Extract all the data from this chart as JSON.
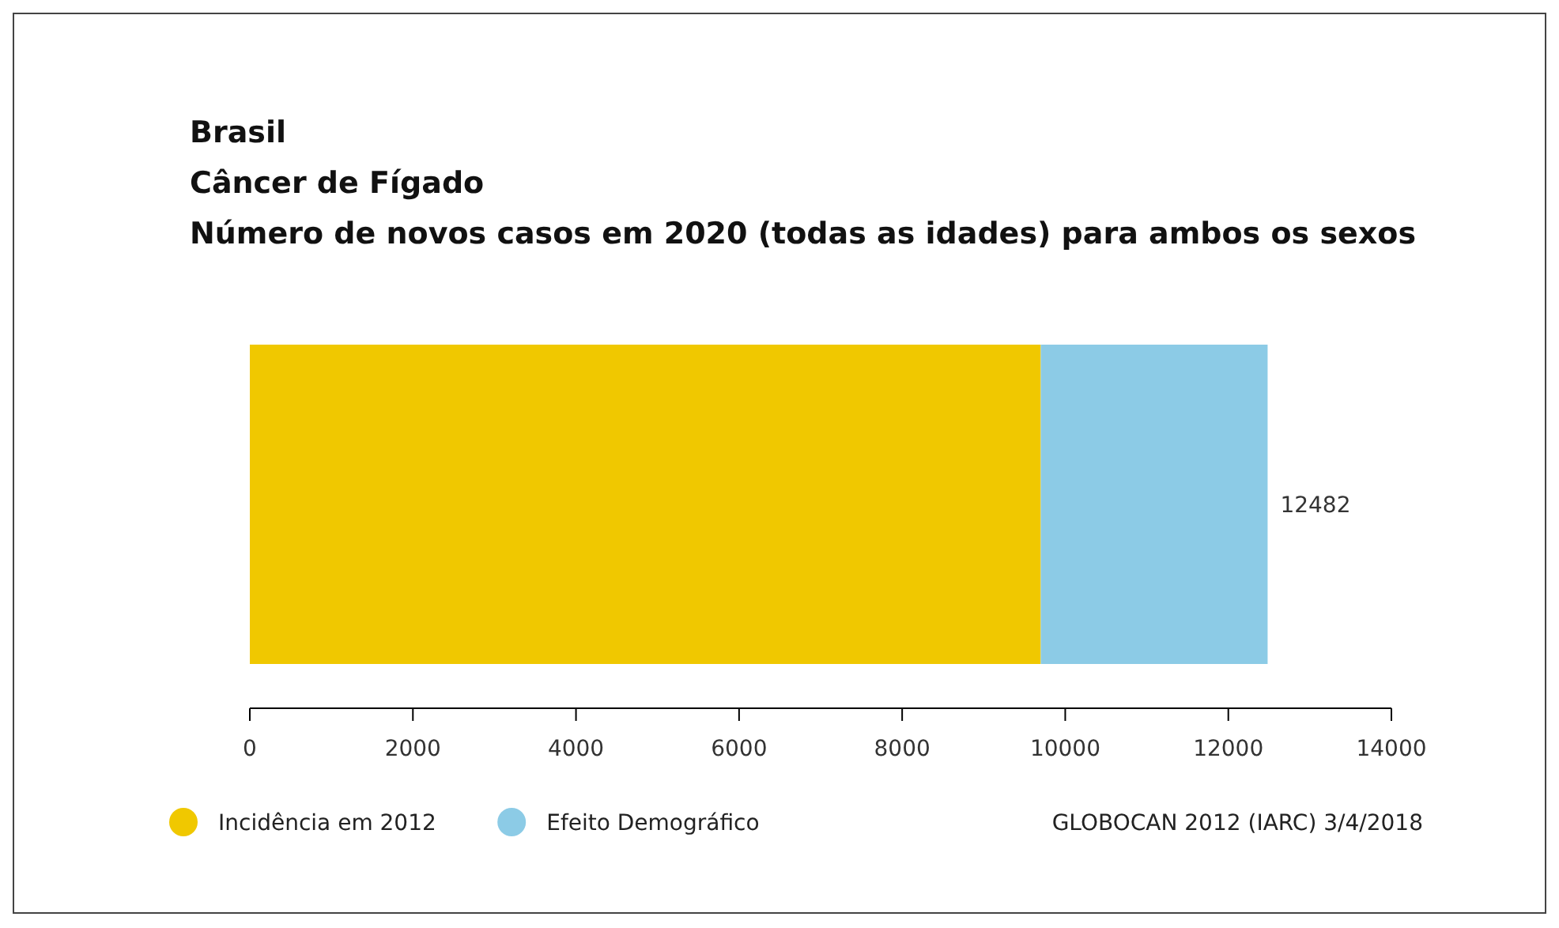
{
  "chart_data": {
    "type": "bar",
    "orientation": "horizontal",
    "stacked": true,
    "title": "Brasil\nCâncer de Fígado\nNúmero de novos casos em 2020 (todas as idades) para ambos os sexos",
    "categories": [
      null
    ],
    "series": [
      {
        "name": "Incidência em 2012",
        "color": "#f0c800",
        "values": [
          9700
        ]
      },
      {
        "name": "Efeito Demográfico",
        "color": "#8ccbe6",
        "values": [
          2782
        ]
      }
    ],
    "totals": [
      "12482"
    ],
    "xlim": [
      0,
      14000
    ],
    "xticks": [
      0,
      2000,
      4000,
      6000,
      8000,
      10000,
      12000,
      14000
    ],
    "grid": false,
    "legend": "bottom left",
    "annotations": [
      "GLOBOCAN 2012 (IARC) 3/4/2018"
    ]
  }
}
